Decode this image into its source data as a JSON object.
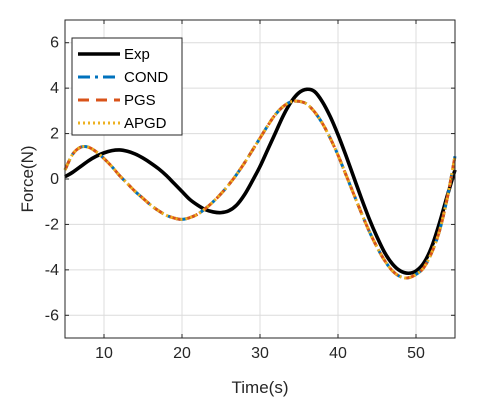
{
  "chart_data": {
    "type": "line",
    "xlabel": "Time(s)",
    "ylabel": "Force(N)",
    "xlim": [
      5,
      55
    ],
    "ylim": [
      -7,
      7
    ],
    "xticks": [
      10,
      20,
      30,
      40,
      50
    ],
    "yticks": [
      -6,
      -4,
      -2,
      0,
      2,
      4,
      6
    ],
    "xtick_labels": [
      "10",
      "20",
      "30",
      "40",
      "50"
    ],
    "ytick_labels": [
      "-6",
      "-4",
      "-2",
      "0",
      "2",
      "4",
      "6"
    ],
    "grid": true,
    "legend_position": "top-left",
    "series": [
      {
        "name": "Exp",
        "color": "#000000",
        "style": "solid",
        "x": [
          5,
          6,
          7,
          8,
          9,
          10,
          11,
          12,
          13,
          14,
          15,
          16,
          17,
          18,
          19,
          20,
          21,
          22,
          23,
          24,
          25,
          26,
          27,
          28,
          29,
          30,
          31,
          32,
          33,
          34,
          35,
          36,
          37,
          38,
          39,
          40,
          41,
          42,
          43,
          44,
          45,
          46,
          47,
          48,
          49,
          50,
          51,
          52,
          53,
          54,
          55
        ],
        "y": [
          0.1,
          0.3,
          0.55,
          0.8,
          1.0,
          1.15,
          1.25,
          1.28,
          1.22,
          1.1,
          0.92,
          0.7,
          0.45,
          0.15,
          -0.2,
          -0.55,
          -0.9,
          -1.15,
          -1.35,
          -1.45,
          -1.48,
          -1.4,
          -1.15,
          -0.7,
          -0.1,
          0.55,
          1.3,
          2.05,
          2.8,
          3.4,
          3.8,
          3.95,
          3.85,
          3.4,
          2.75,
          1.95,
          1.05,
          0.1,
          -0.85,
          -1.75,
          -2.55,
          -3.25,
          -3.75,
          -4.05,
          -4.15,
          -4.05,
          -3.7,
          -3.0,
          -1.95,
          -0.75,
          0.4
        ]
      },
      {
        "name": "COND",
        "color": "#0072BD",
        "style": "dashdot",
        "x": [
          5,
          6,
          7,
          8,
          9,
          10,
          11,
          12,
          13,
          14,
          15,
          16,
          17,
          18,
          19,
          20,
          21,
          22,
          23,
          24,
          25,
          26,
          27,
          28,
          29,
          30,
          31,
          32,
          33,
          34,
          35,
          36,
          37,
          38,
          39,
          40,
          41,
          42,
          43,
          44,
          45,
          46,
          47,
          48,
          49,
          50,
          51,
          52,
          53,
          54,
          55
        ],
        "y": [
          0.4,
          1.1,
          1.4,
          1.4,
          1.2,
          0.9,
          0.55,
          0.15,
          -0.2,
          -0.55,
          -0.85,
          -1.15,
          -1.4,
          -1.6,
          -1.72,
          -1.78,
          -1.7,
          -1.55,
          -1.3,
          -1.0,
          -0.65,
          -0.25,
          0.2,
          0.7,
          1.25,
          1.8,
          2.35,
          2.85,
          3.2,
          3.4,
          3.42,
          3.3,
          2.95,
          2.45,
          1.8,
          1.05,
          0.2,
          -0.65,
          -1.5,
          -2.3,
          -3.0,
          -3.6,
          -4.05,
          -4.3,
          -4.35,
          -4.2,
          -3.9,
          -3.25,
          -2.3,
          -0.85,
          1.0
        ]
      },
      {
        "name": "PGS",
        "color": "#D95319",
        "style": "dashed",
        "x": [
          5,
          6,
          7,
          8,
          9,
          10,
          11,
          12,
          13,
          14,
          15,
          16,
          17,
          18,
          19,
          20,
          21,
          22,
          23,
          24,
          25,
          26,
          27,
          28,
          29,
          30,
          31,
          32,
          33,
          34,
          35,
          36,
          37,
          38,
          39,
          40,
          41,
          42,
          43,
          44,
          45,
          46,
          47,
          48,
          49,
          50,
          51,
          52,
          53,
          54,
          55
        ],
        "y": [
          0.4,
          1.1,
          1.4,
          1.4,
          1.2,
          0.9,
          0.55,
          0.15,
          -0.2,
          -0.55,
          -0.85,
          -1.15,
          -1.4,
          -1.6,
          -1.72,
          -1.78,
          -1.7,
          -1.55,
          -1.3,
          -1.0,
          -0.65,
          -0.25,
          0.2,
          0.7,
          1.25,
          1.8,
          2.35,
          2.85,
          3.2,
          3.4,
          3.42,
          3.3,
          2.95,
          2.45,
          1.8,
          1.05,
          0.2,
          -0.65,
          -1.5,
          -2.3,
          -3.0,
          -3.6,
          -4.05,
          -4.3,
          -4.35,
          -4.2,
          -3.9,
          -3.25,
          -2.3,
          -0.85,
          1.0
        ]
      },
      {
        "name": "APGD",
        "color": "#EDB120",
        "style": "dotted",
        "x": [
          5,
          6,
          7,
          8,
          9,
          10,
          11,
          12,
          13,
          14,
          15,
          16,
          17,
          18,
          19,
          20,
          21,
          22,
          23,
          24,
          25,
          26,
          27,
          28,
          29,
          30,
          31,
          32,
          33,
          34,
          35,
          36,
          37,
          38,
          39,
          40,
          41,
          42,
          43,
          44,
          45,
          46,
          47,
          48,
          49,
          50,
          51,
          52,
          53,
          54,
          55
        ],
        "y": [
          0.4,
          1.1,
          1.4,
          1.4,
          1.2,
          0.9,
          0.55,
          0.15,
          -0.2,
          -0.55,
          -0.85,
          -1.15,
          -1.4,
          -1.6,
          -1.72,
          -1.78,
          -1.7,
          -1.55,
          -1.3,
          -1.0,
          -0.65,
          -0.25,
          0.2,
          0.7,
          1.25,
          1.8,
          2.35,
          2.85,
          3.2,
          3.4,
          3.42,
          3.3,
          2.95,
          2.45,
          1.8,
          1.05,
          0.2,
          -0.65,
          -1.5,
          -2.3,
          -3.0,
          -3.6,
          -4.05,
          -4.3,
          -4.35,
          -4.2,
          -3.9,
          -3.25,
          -2.3,
          -0.85,
          1.0
        ]
      }
    ]
  }
}
